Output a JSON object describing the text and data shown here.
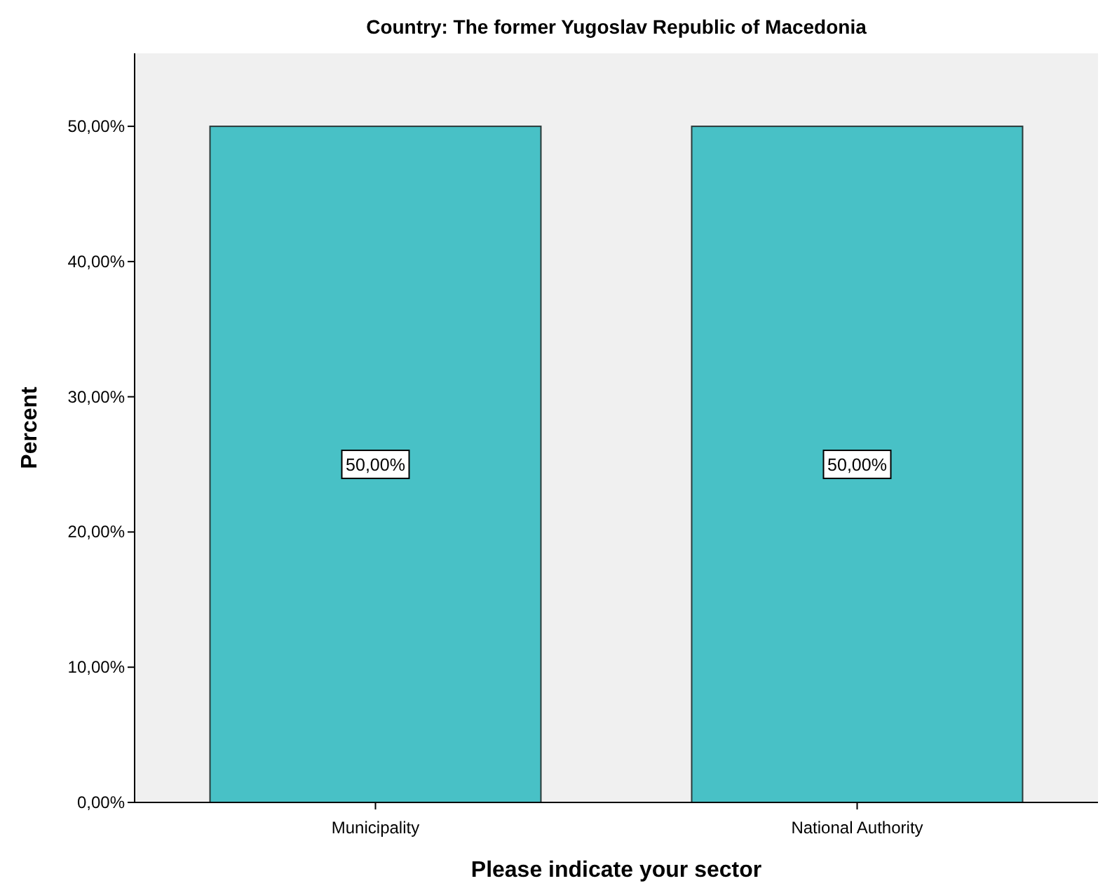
{
  "chart_data": {
    "type": "bar",
    "title": "Country: The former Yugoslav Republic of Macedonia",
    "xlabel": "Please indicate your sector",
    "ylabel": "Percent",
    "categories": [
      "Municipality",
      "National Authority"
    ],
    "values": [
      50,
      50
    ],
    "color": "#48c1c6",
    "value_labels": [
      "50,00%",
      "50,00%"
    ],
    "ylim": [
      0,
      55.4
    ],
    "yticks": [
      {
        "value": 0,
        "label": "0,00%"
      },
      {
        "value": 10,
        "label": "10,00%"
      },
      {
        "value": 20,
        "label": "20,00%"
      },
      {
        "value": 30,
        "label": "30,00%"
      },
      {
        "value": 40,
        "label": "40,00%"
      },
      {
        "value": 50,
        "label": "50,00%"
      }
    ],
    "grid": false
  }
}
